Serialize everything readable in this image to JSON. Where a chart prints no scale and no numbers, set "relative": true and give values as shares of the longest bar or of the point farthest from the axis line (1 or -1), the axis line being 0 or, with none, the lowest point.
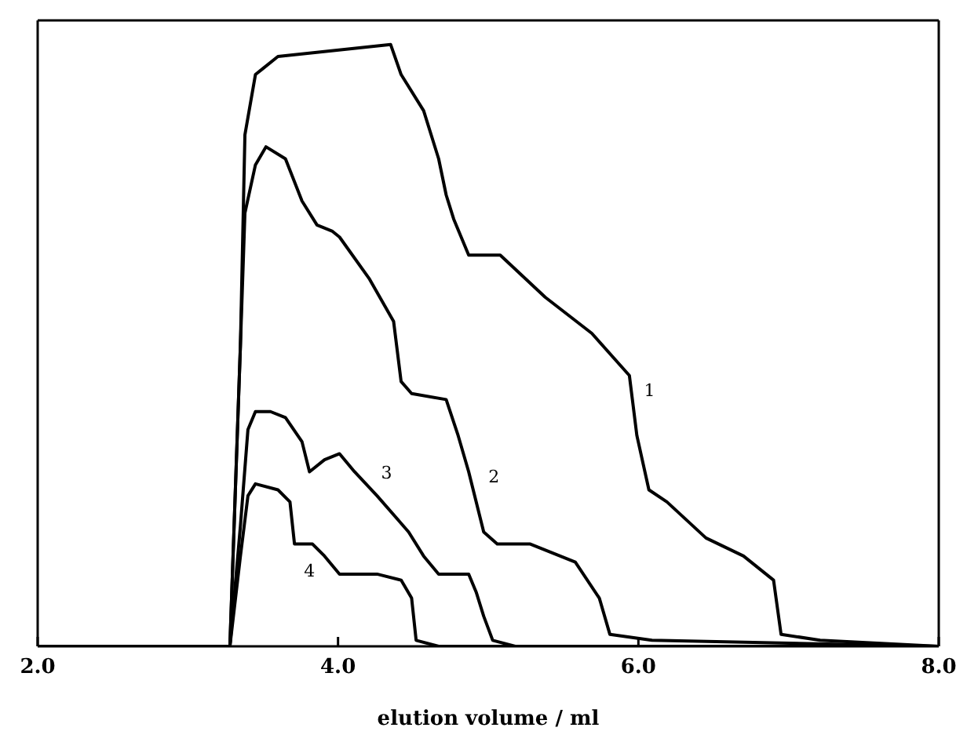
{
  "chart_data": {
    "type": "line",
    "relative": true,
    "xlabel": "elution volume  / ml",
    "xlim": [
      2,
      8
    ],
    "xticks": [
      {
        "value": 2,
        "label": "2.0"
      },
      {
        "value": 4,
        "label": "4.0"
      },
      {
        "value": 6,
        "label": "6.0"
      },
      {
        "value": 8,
        "label": "8.0"
      }
    ],
    "grid": false,
    "legend": false,
    "marker": "none",
    "line_style": "solid",
    "series": [
      {
        "name": "1",
        "color": "#000000",
        "x": [
          2,
          3.28,
          3.35,
          3.38,
          3.45,
          3.5,
          3.6,
          4.35,
          4.42,
          4.57,
          4.67,
          4.72,
          4.77,
          4.87,
          5.08,
          5.38,
          5.69,
          5.94,
          5.99,
          6.07,
          6.19,
          6.45,
          6.7,
          6.9,
          6.95,
          7.21,
          8
        ],
        "values": [
          0,
          0,
          0.5,
          0.85,
          0.95,
          0.96,
          0.98,
          1.0,
          0.95,
          0.89,
          0.81,
          0.75,
          0.71,
          0.65,
          0.65,
          0.58,
          0.52,
          0.45,
          0.35,
          0.26,
          0.24,
          0.18,
          0.15,
          0.11,
          0.02,
          0.01,
          0
        ]
      },
      {
        "name": "2",
        "color": "#000000",
        "x": [
          2,
          3.28,
          3.35,
          3.38,
          3.45,
          3.52,
          3.65,
          3.76,
          3.86,
          3.96,
          4.01,
          4.21,
          4.37,
          4.42,
          4.49,
          4.72,
          4.8,
          4.87,
          4.97,
          5.06,
          5.28,
          5.58,
          5.74,
          5.81,
          6.09,
          8
        ],
        "values": [
          0,
          0,
          0.5,
          0.72,
          0.8,
          0.83,
          0.81,
          0.74,
          0.7,
          0.69,
          0.68,
          0.61,
          0.54,
          0.44,
          0.42,
          0.41,
          0.35,
          0.29,
          0.19,
          0.17,
          0.17,
          0.14,
          0.08,
          0.02,
          0.01,
          0
        ]
      },
      {
        "name": "3",
        "color": "#000000",
        "x": [
          2,
          3.28,
          3.35,
          3.4,
          3.45,
          3.55,
          3.65,
          3.76,
          3.81,
          3.91,
          4.01,
          4.11,
          4.26,
          4.47,
          4.57,
          4.67,
          4.87,
          4.92,
          4.97,
          5.03,
          5.18,
          8
        ],
        "values": [
          0,
          0,
          0.2,
          0.36,
          0.39,
          0.39,
          0.38,
          0.34,
          0.29,
          0.31,
          0.32,
          0.29,
          0.25,
          0.19,
          0.15,
          0.12,
          0.12,
          0.09,
          0.05,
          0.01,
          0.0,
          0
        ]
      },
      {
        "name": "4",
        "color": "#000000",
        "x": [
          2,
          3.28,
          3.35,
          3.4,
          3.45,
          3.6,
          3.68,
          3.71,
          3.76,
          3.83,
          3.91,
          4.01,
          4.26,
          4.42,
          4.49,
          4.52,
          4.67,
          8
        ],
        "values": [
          0,
          0,
          0.15,
          0.25,
          0.27,
          0.26,
          0.24,
          0.17,
          0.17,
          0.17,
          0.15,
          0.12,
          0.12,
          0.11,
          0.08,
          0.01,
          0.0,
          0
        ]
      }
    ]
  }
}
